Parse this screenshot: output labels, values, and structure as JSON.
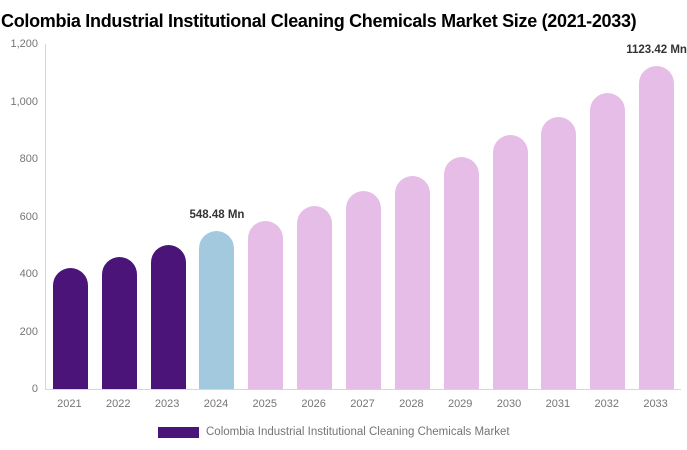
{
  "title": "Colombia Industrial Institutional Cleaning Chemicals Market Size (2021-2033)",
  "legend": {
    "label": "Colombia Industrial Institutional Cleaning Chemicals Market",
    "swatch_color": "#4B1478"
  },
  "colors": {
    "historical_bar": "#4B1478",
    "base_year_bar": "#A3C9DE",
    "forecast_bar": "#E5BDE7",
    "axis_line": "#D6D6D6",
    "tick_text": "#757575",
    "data_label_text": "#333333",
    "title_text": "#000000"
  },
  "chart_data": {
    "type": "bar",
    "title": "Colombia Industrial Institutional Cleaning Chemicals Market Size (2021-2033)",
    "xlabel": "",
    "ylabel": "",
    "ylim": [
      0,
      1200
    ],
    "yticks": [
      "0",
      "200",
      "400",
      "600",
      "800",
      "1,000",
      "1,200"
    ],
    "grid": false,
    "legend_position": "bottom",
    "unit": "Mn",
    "categories": [
      "2021",
      "2022",
      "2023",
      "2024",
      "2025",
      "2026",
      "2027",
      "2028",
      "2029",
      "2030",
      "2031",
      "2032",
      "2033"
    ],
    "values": [
      420,
      458,
      500,
      548.48,
      585,
      638,
      690,
      742,
      808,
      883,
      945,
      1030,
      1123.42
    ],
    "bar_colors": [
      "#4B1478",
      "#4B1478",
      "#4B1478",
      "#A3C9DE",
      "#E5BDE7",
      "#E5BDE7",
      "#E5BDE7",
      "#E5BDE7",
      "#E5BDE7",
      "#E5BDE7",
      "#E5BDE7",
      "#E5BDE7",
      "#E5BDE7"
    ],
    "annotations": [
      {
        "category": "2024",
        "text": "548.48 Mn"
      },
      {
        "category": "2033",
        "text": "1123.42 Mn"
      }
    ]
  }
}
